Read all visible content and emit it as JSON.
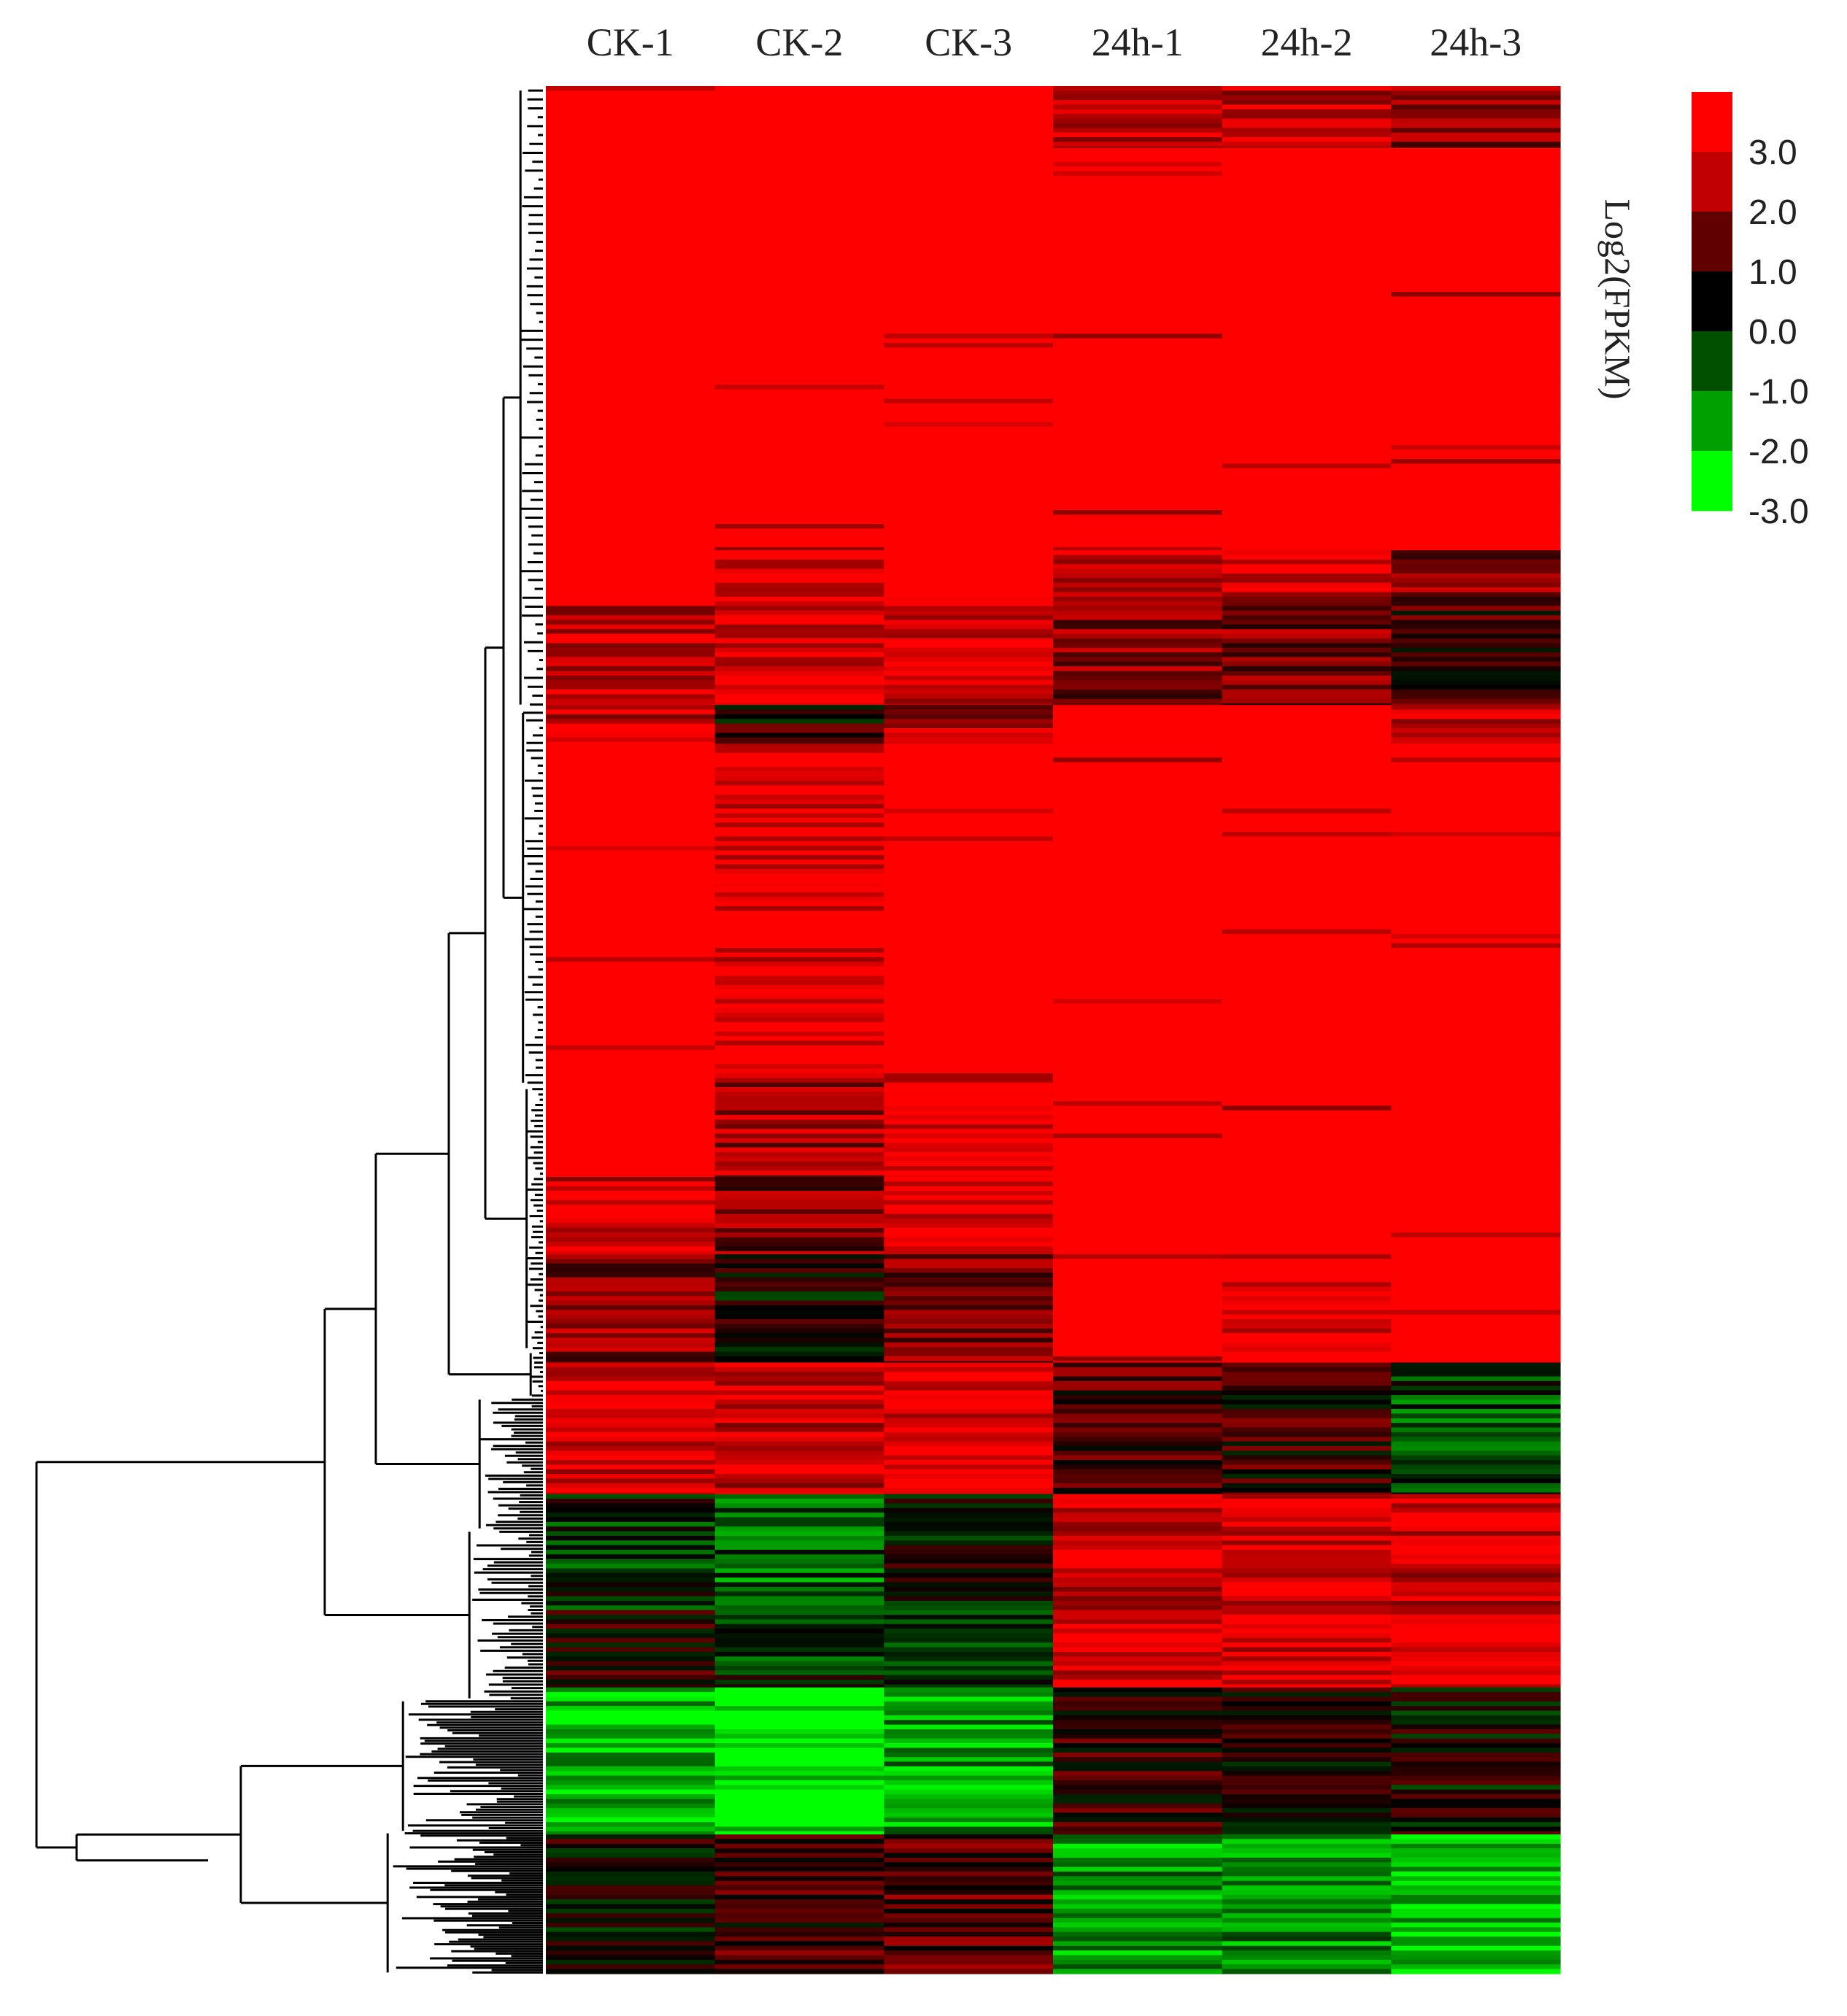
{
  "chart_data": {
    "type": "heatmap",
    "title": "",
    "columns": [
      "CK-1",
      "CK-2",
      "CK-3",
      "24h-1",
      "24h-2",
      "24h-3"
    ],
    "colorbar": {
      "title": "Log2(FPKM)",
      "ticks": [
        "3.0",
        "2.0",
        "1.0",
        "0.0",
        "-1.0",
        "-2.0",
        "-3.0"
      ],
      "range": [
        -3.0,
        3.0
      ],
      "colors": [
        "#ff0000",
        "#c00000",
        "#600000",
        "#000000",
        "#005000",
        "#00a000",
        "#00ff00"
      ]
    },
    "row_dendrogram": true,
    "row_blocks": [
      {
        "rows": 80,
        "values": [
          3.0,
          3.0,
          3.0,
          2.4,
          2.3,
          1.8
        ]
      },
      {
        "rows": 520,
        "values": [
          3.0,
          3.0,
          3.0,
          3.0,
          3.0,
          3.0
        ]
      },
      {
        "rows": 60,
        "values": [
          3.0,
          2.8,
          3.0,
          2.5,
          2.5,
          1.5
        ]
      },
      {
        "rows": 140,
        "values": [
          2.4,
          2.8,
          2.6,
          1.5,
          1.4,
          0.8
        ]
      },
      {
        "rows": 50,
        "values": [
          2.3,
          0.4,
          1.8,
          3.0,
          3.0,
          2.6
        ]
      },
      {
        "rows": 420,
        "values": [
          3.0,
          2.9,
          3.0,
          3.0,
          3.0,
          3.0
        ]
      },
      {
        "rows": 140,
        "values": [
          3.0,
          1.9,
          2.9,
          3.0,
          3.0,
          3.0
        ]
      },
      {
        "rows": 100,
        "values": [
          2.6,
          1.5,
          2.5,
          3.0,
          3.0,
          3.0
        ]
      },
      {
        "rows": 140,
        "values": [
          1.6,
          0.1,
          1.5,
          3.0,
          2.9,
          3.0
        ]
      },
      {
        "rows": 170,
        "values": [
          2.6,
          2.3,
          2.9,
          0.9,
          0.6,
          -0.8
        ]
      },
      {
        "rows": 150,
        "values": [
          -0.5,
          -1.2,
          0.0,
          2.4,
          2.7,
          2.5
        ]
      },
      {
        "rows": 100,
        "values": [
          0.5,
          -0.5,
          -0.3,
          2.7,
          2.4,
          2.8
        ]
      },
      {
        "rows": 190,
        "values": [
          -2.2,
          -2.9,
          -1.8,
          0.6,
          0.3,
          0.1
        ]
      },
      {
        "rows": 180,
        "values": [
          0.1,
          0.7,
          1.0,
          -1.8,
          -1.6,
          -2.3
        ]
      }
    ]
  }
}
